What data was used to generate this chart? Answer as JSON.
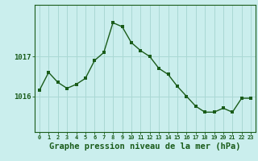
{
  "x": [
    0,
    1,
    2,
    3,
    4,
    5,
    6,
    7,
    8,
    9,
    10,
    11,
    12,
    13,
    14,
    15,
    16,
    17,
    18,
    19,
    20,
    21,
    22,
    23
  ],
  "y": [
    1016.15,
    1016.6,
    1016.35,
    1016.2,
    1016.3,
    1016.45,
    1016.9,
    1017.1,
    1017.85,
    1017.75,
    1017.35,
    1017.15,
    1017.0,
    1016.7,
    1016.55,
    1016.25,
    1016.0,
    1015.75,
    1015.6,
    1015.6,
    1015.7,
    1015.6,
    1015.95,
    1015.95
  ],
  "line_color": "#1a5c1a",
  "marker": "s",
  "marker_size": 2.5,
  "line_width": 1.0,
  "bg_color": "#caeeed",
  "grid_color": "#aad8d4",
  "axis_color": "#1a5c1a",
  "xlabel": "Graphe pression niveau de la mer (hPa)",
  "xlabel_fontsize": 7.5,
  "ytick_labels": [
    "1016",
    "1017"
  ],
  "ytick_values": [
    1016,
    1017
  ],
  "ylim": [
    1015.1,
    1018.3
  ],
  "xlim": [
    -0.5,
    23.5
  ]
}
